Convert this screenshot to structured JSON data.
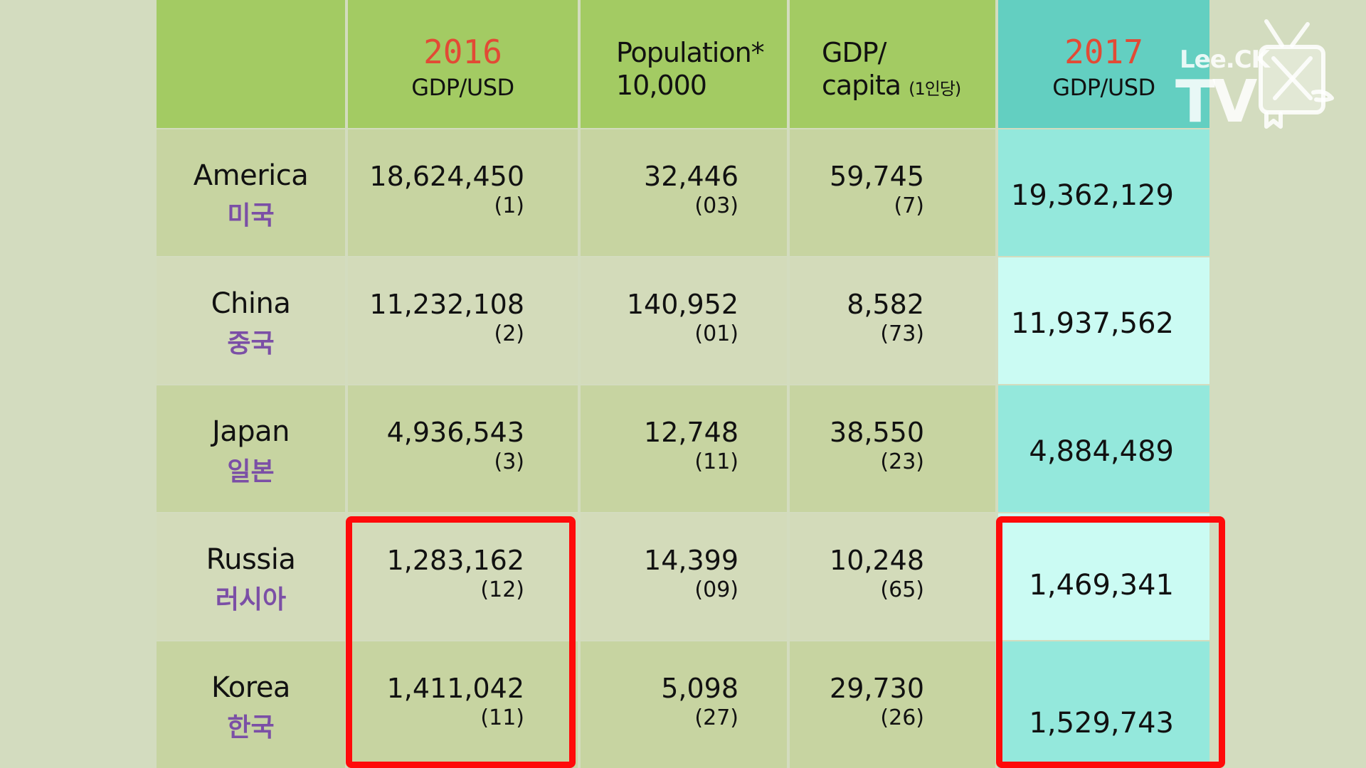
{
  "header": {
    "col1": {
      "year": "2016",
      "sub": "GDP/USD"
    },
    "col2": {
      "line1": "Population*",
      "line2": "10,000"
    },
    "col3": {
      "line1": "GDP/",
      "line2": "capita",
      "small": "(1인당)"
    },
    "col4": {
      "year": "2017",
      "sub": "GDP/USD"
    }
  },
  "rows": [
    {
      "en": "America",
      "ko": "미국",
      "gdp2016": "18,624,450",
      "gdp2016_rank": "(1)",
      "pop": "32,446",
      "pop_rank": "(03)",
      "percap": "59,745",
      "percap_rank": "(7)",
      "gdp2017": "19,362,129"
    },
    {
      "en": "China",
      "ko": "중국",
      "gdp2016": "11,232,108",
      "gdp2016_rank": "(2)",
      "pop": "140,952",
      "pop_rank": "(01)",
      "percap": "8,582",
      "percap_rank": "(73)",
      "gdp2017": "11,937,562"
    },
    {
      "en": "Japan",
      "ko": "일본",
      "gdp2016": "4,936,543",
      "gdp2016_rank": "(3)",
      "pop": "12,748",
      "pop_rank": "(11)",
      "percap": "38,550",
      "percap_rank": "(23)",
      "gdp2017": "4,884,489"
    },
    {
      "en": "Russia",
      "ko": "러시아",
      "gdp2016": "1,283,162",
      "gdp2016_rank": "(12)",
      "pop": "14,399",
      "pop_rank": "(09)",
      "percap": "10,248",
      "percap_rank": "(65)",
      "gdp2017": "1,469,341"
    },
    {
      "en": "Korea",
      "ko": "한국",
      "gdp2016": "1,411,042",
      "gdp2016_rank": "(11)",
      "pop": "5,098",
      "pop_rank": "(27)",
      "percap": "29,730",
      "percap_rank": "(26)",
      "gdp2017": "1,529,743"
    }
  ],
  "logo": {
    "text": "Lee.CK",
    "tv": "TV"
  },
  "colors": {
    "header_green": "#a3cb63",
    "header_teal": "#63cfc1",
    "year_red": "#e24a35",
    "korean_purple": "#7b4fa6",
    "highlight_red": "#ff0a0a"
  }
}
